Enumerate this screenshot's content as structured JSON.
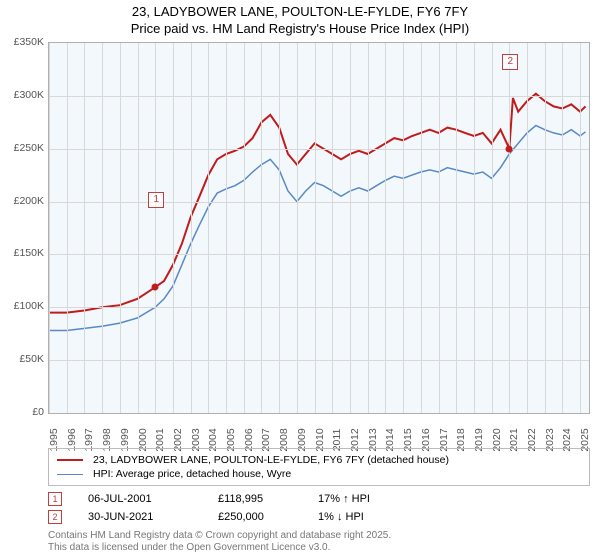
{
  "title_line1": "23, LADYBOWER LANE, POULTON-LE-FYLDE, FY6 7FY",
  "title_line2": "Price paid vs. HM Land Registry's House Price Index (HPI)",
  "chart": {
    "type": "line",
    "background_color": "#f2f8fc",
    "grid_color": "#d8d8d8",
    "border_color": "#b0b0b0",
    "ylim": [
      0,
      350000
    ],
    "ytick_step": 50000,
    "y_ticks": [
      "£0",
      "£50K",
      "£100K",
      "£150K",
      "£200K",
      "£250K",
      "£300K",
      "£350K"
    ],
    "x_years": [
      1995,
      1996,
      1997,
      1998,
      1999,
      2000,
      2001,
      2002,
      2003,
      2004,
      2005,
      2006,
      2007,
      2008,
      2009,
      2010,
      2011,
      2012,
      2013,
      2014,
      2015,
      2016,
      2017,
      2018,
      2019,
      2020,
      2021,
      2022,
      2023,
      2024,
      2025
    ],
    "x_range": [
      1995,
      2025.5
    ],
    "series": [
      {
        "name": "23, LADYBOWER LANE, POULTON-LE-FYLDE, FY6 7FY (detached house)",
        "color": "#c11b1b",
        "width": 2,
        "points": [
          [
            1995,
            95000
          ],
          [
            1996,
            95000
          ],
          [
            1997,
            97000
          ],
          [
            1998,
            100000
          ],
          [
            1999,
            102000
          ],
          [
            2000,
            108000
          ],
          [
            2001,
            118995
          ],
          [
            2001.5,
            125000
          ],
          [
            2002,
            140000
          ],
          [
            2002.5,
            160000
          ],
          [
            2003,
            185000
          ],
          [
            2003.5,
            205000
          ],
          [
            2004,
            225000
          ],
          [
            2004.5,
            240000
          ],
          [
            2005,
            245000
          ],
          [
            2005.5,
            248000
          ],
          [
            2006,
            252000
          ],
          [
            2006.5,
            260000
          ],
          [
            2007,
            275000
          ],
          [
            2007.5,
            282000
          ],
          [
            2008,
            270000
          ],
          [
            2008.5,
            245000
          ],
          [
            2009,
            235000
          ],
          [
            2009.5,
            245000
          ],
          [
            2010,
            255000
          ],
          [
            2010.5,
            250000
          ],
          [
            2011,
            245000
          ],
          [
            2011.5,
            240000
          ],
          [
            2012,
            245000
          ],
          [
            2012.5,
            248000
          ],
          [
            2013,
            245000
          ],
          [
            2013.5,
            250000
          ],
          [
            2014,
            255000
          ],
          [
            2014.5,
            260000
          ],
          [
            2015,
            258000
          ],
          [
            2015.5,
            262000
          ],
          [
            2016,
            265000
          ],
          [
            2016.5,
            268000
          ],
          [
            2017,
            265000
          ],
          [
            2017.5,
            270000
          ],
          [
            2018,
            268000
          ],
          [
            2018.5,
            265000
          ],
          [
            2019,
            262000
          ],
          [
            2019.5,
            265000
          ],
          [
            2020,
            255000
          ],
          [
            2020.5,
            268000
          ],
          [
            2021,
            250000
          ],
          [
            2021.2,
            298000
          ],
          [
            2021.5,
            285000
          ],
          [
            2022,
            295000
          ],
          [
            2022.5,
            302000
          ],
          [
            2023,
            295000
          ],
          [
            2023.5,
            290000
          ],
          [
            2024,
            288000
          ],
          [
            2024.5,
            292000
          ],
          [
            2025,
            285000
          ],
          [
            2025.3,
            290000
          ]
        ]
      },
      {
        "name": "HPI: Average price, detached house, Wyre",
        "color": "#5989c5",
        "width": 1.5,
        "points": [
          [
            1995,
            78000
          ],
          [
            1996,
            78000
          ],
          [
            1997,
            80000
          ],
          [
            1998,
            82000
          ],
          [
            1999,
            85000
          ],
          [
            2000,
            90000
          ],
          [
            2001,
            100000
          ],
          [
            2001.5,
            108000
          ],
          [
            2002,
            120000
          ],
          [
            2002.5,
            140000
          ],
          [
            2003,
            160000
          ],
          [
            2003.5,
            178000
          ],
          [
            2004,
            195000
          ],
          [
            2004.5,
            208000
          ],
          [
            2005,
            212000
          ],
          [
            2005.5,
            215000
          ],
          [
            2006,
            220000
          ],
          [
            2006.5,
            228000
          ],
          [
            2007,
            235000
          ],
          [
            2007.5,
            240000
          ],
          [
            2008,
            230000
          ],
          [
            2008.5,
            210000
          ],
          [
            2009,
            200000
          ],
          [
            2009.5,
            210000
          ],
          [
            2010,
            218000
          ],
          [
            2010.5,
            215000
          ],
          [
            2011,
            210000
          ],
          [
            2011.5,
            205000
          ],
          [
            2012,
            210000
          ],
          [
            2012.5,
            213000
          ],
          [
            2013,
            210000
          ],
          [
            2013.5,
            215000
          ],
          [
            2014,
            220000
          ],
          [
            2014.5,
            224000
          ],
          [
            2015,
            222000
          ],
          [
            2015.5,
            225000
          ],
          [
            2016,
            228000
          ],
          [
            2016.5,
            230000
          ],
          [
            2017,
            228000
          ],
          [
            2017.5,
            232000
          ],
          [
            2018,
            230000
          ],
          [
            2018.5,
            228000
          ],
          [
            2019,
            226000
          ],
          [
            2019.5,
            228000
          ],
          [
            2020,
            222000
          ],
          [
            2020.5,
            232000
          ],
          [
            2021,
            245000
          ],
          [
            2021.5,
            255000
          ],
          [
            2022,
            265000
          ],
          [
            2022.5,
            272000
          ],
          [
            2023,
            268000
          ],
          [
            2023.5,
            265000
          ],
          [
            2024,
            263000
          ],
          [
            2024.5,
            268000
          ],
          [
            2025,
            262000
          ],
          [
            2025.3,
            266000
          ]
        ]
      }
    ],
    "markers": [
      {
        "id": "1",
        "x": 2001,
        "y": 118995
      },
      {
        "id": "2",
        "x": 2021,
        "y": 250000
      }
    ]
  },
  "legend": {
    "rows": [
      {
        "color": "#c11b1b",
        "width": 2,
        "label": "23, LADYBOWER LANE, POULTON-LE-FYLDE, FY6 7FY (detached house)"
      },
      {
        "color": "#5989c5",
        "width": 1.5,
        "label": "HPI: Average price, detached house, Wyre"
      }
    ]
  },
  "sales": [
    {
      "id": "1",
      "date": "06-JUL-2001",
      "price": "£118,995",
      "delta": "17% ↑ HPI"
    },
    {
      "id": "2",
      "date": "30-JUN-2021",
      "price": "£250,000",
      "delta": "1% ↓ HPI"
    }
  ],
  "footnote_line1": "Contains HM Land Registry data © Crown copyright and database right 2025.",
  "footnote_line2": "This data is licensed under the Open Government Licence v3.0.",
  "label_fontsize": 10.5,
  "title_fontsize": 13
}
